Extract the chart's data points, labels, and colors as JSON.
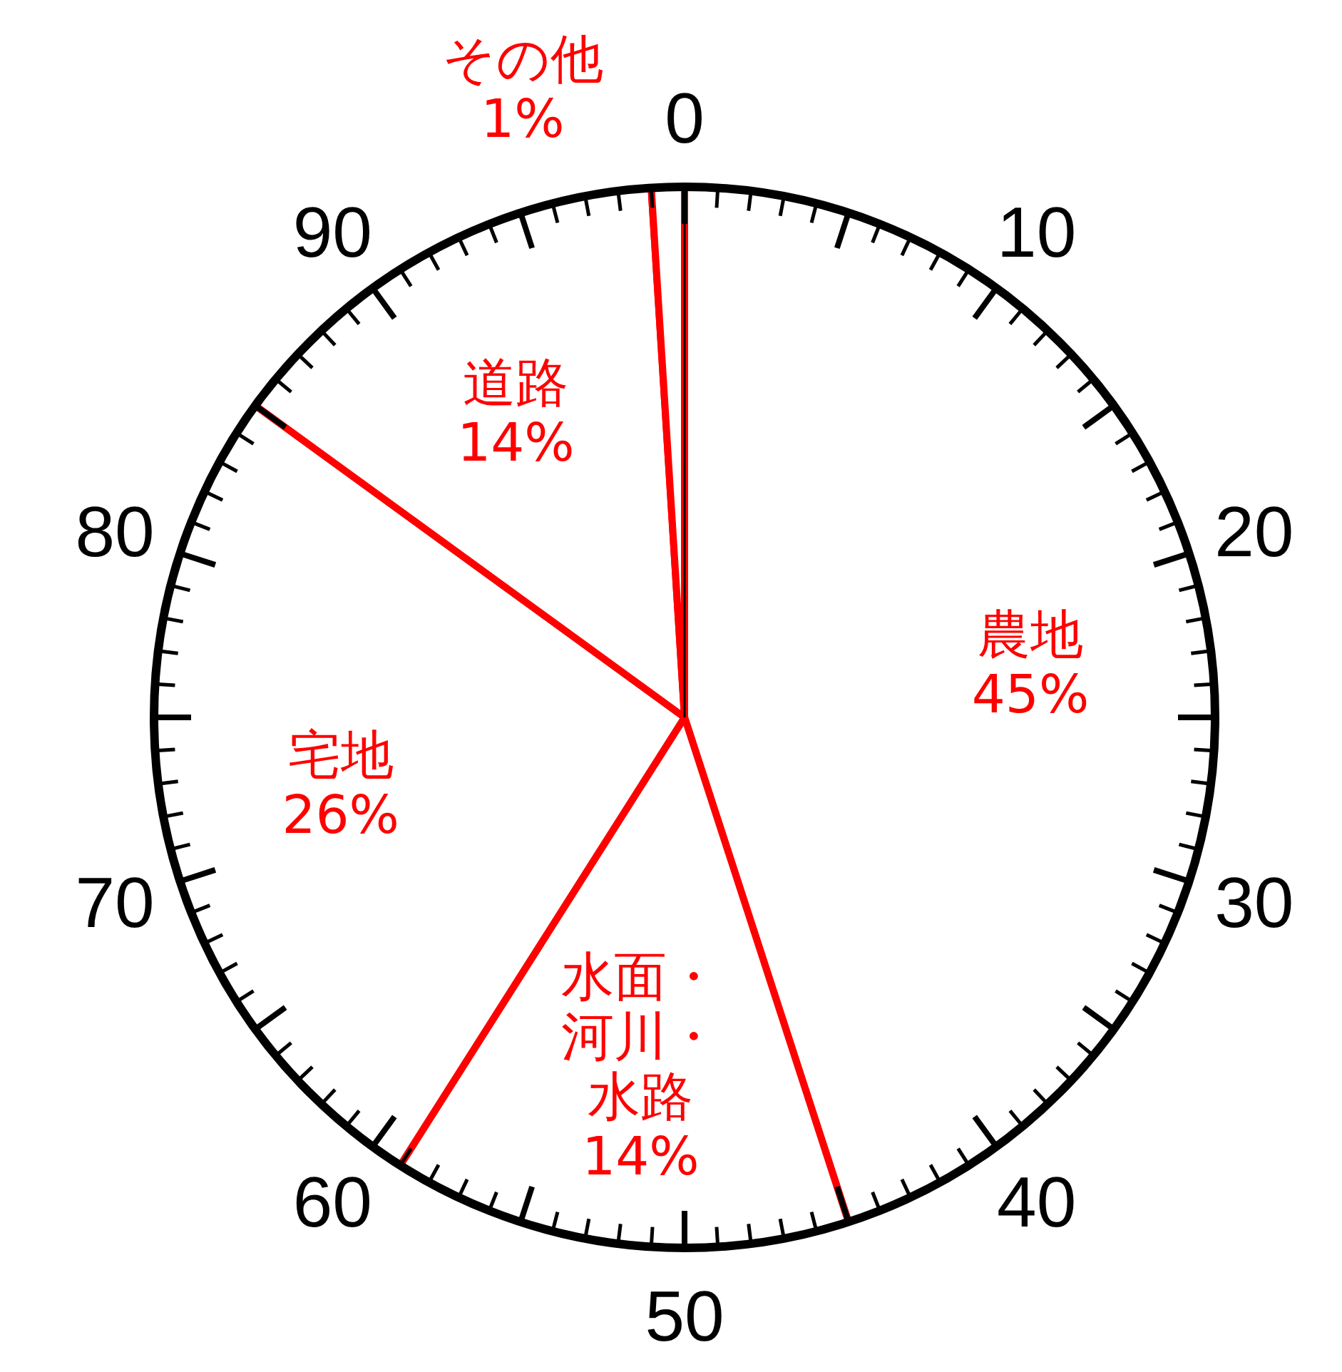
{
  "chart_data": {
    "type": "pie",
    "categories": [
      "農地",
      "水面・河川・水路",
      "宅地",
      "道路",
      "その他"
    ],
    "values": [
      45,
      14,
      26,
      14,
      1
    ],
    "colors": [
      "#ffffff",
      "#ffffff",
      "#ffffff",
      "#ffffff",
      "#ffffff"
    ],
    "value_labels": [
      "45%",
      "14%",
      "26%",
      "14%",
      "1%"
    ],
    "needle": "農地",
    "annotations": [
      "0",
      "10",
      "20",
      "30",
      "40",
      "50",
      "60",
      "70",
      "80",
      "90"
    ]
  }
}
